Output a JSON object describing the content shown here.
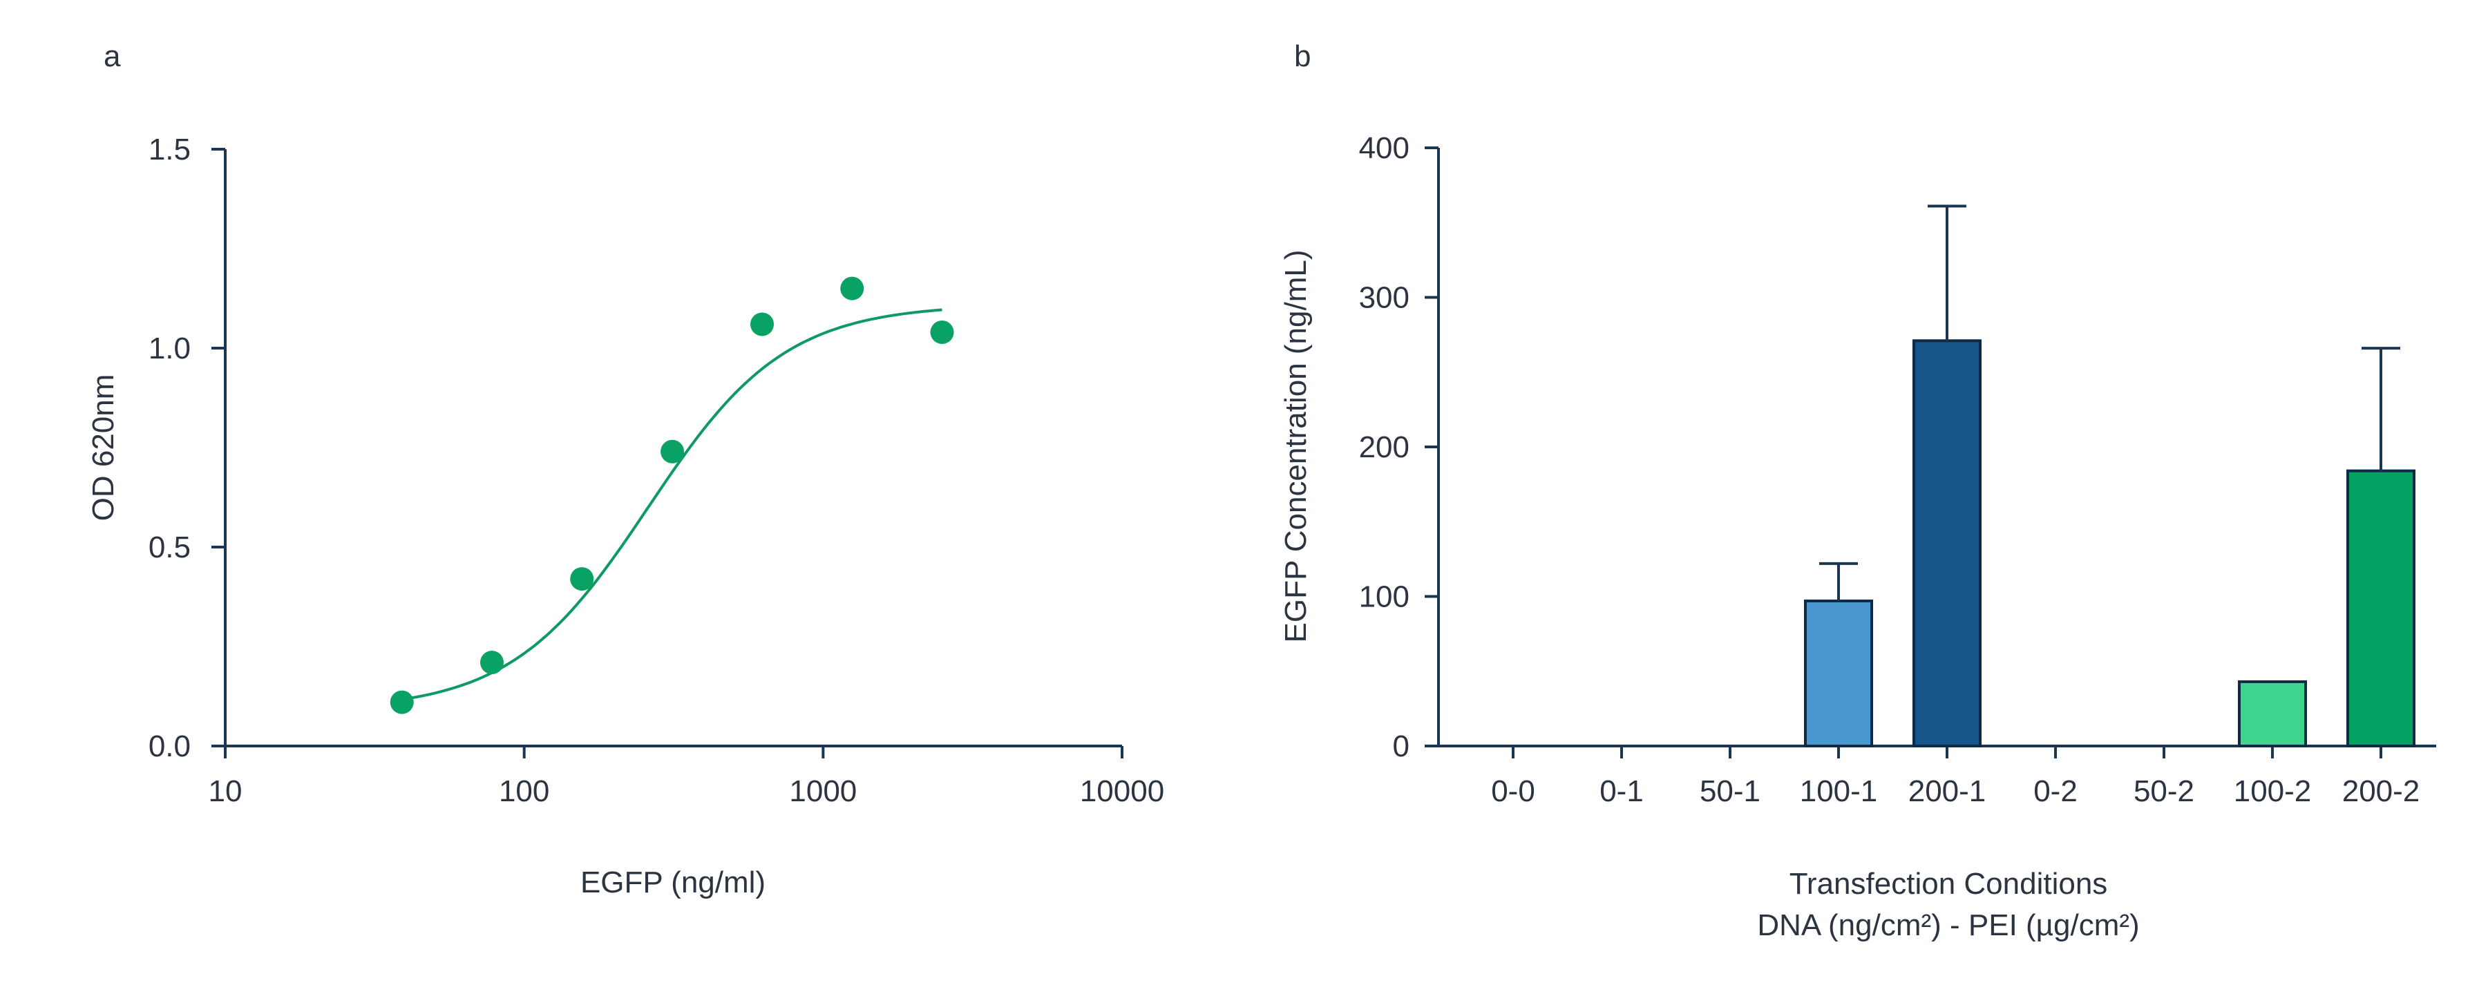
{
  "panels": {
    "a": "a",
    "b": "b"
  },
  "colors": {
    "axis": "#1c3550",
    "curve": "#0f9a63",
    "points": "#0aa264",
    "bars": {
      "100-1": "#4a98cf",
      "200-1": "#15568a",
      "100-2": "#3fd58f",
      "200-2": "#04a262"
    }
  },
  "chart_data": [
    {
      "type": "scatter",
      "panel": "a",
      "xlabel": "EGFP (ng/ml)",
      "ylabel": "OD 620nm",
      "xscale": "log",
      "xlim": [
        10,
        10000
      ],
      "ylim": [
        0,
        1.5
      ],
      "xticks": [
        10,
        100,
        1000,
        10000
      ],
      "xtick_labels": [
        "10",
        "100",
        "1000",
        "10000"
      ],
      "yticks": [
        0,
        0.5,
        1.0,
        1.5
      ],
      "ytick_labels": [
        "0.0",
        "0.5",
        "1.0",
        "1.5"
      ],
      "points": [
        {
          "x": 39,
          "y": 0.11
        },
        {
          "x": 78,
          "y": 0.21
        },
        {
          "x": 156,
          "y": 0.42
        },
        {
          "x": 313,
          "y": 0.74
        },
        {
          "x": 625,
          "y": 1.06
        },
        {
          "x": 1250,
          "y": 1.15
        },
        {
          "x": 2500,
          "y": 1.04
        }
      ],
      "fit_curve": {
        "kind": "4PL",
        "bottom": 0.09,
        "top": 1.11,
        "ec50": 260,
        "hill": 1.9,
        "x_range": [
          39,
          2500
        ]
      },
      "grid": false,
      "legend": "none"
    },
    {
      "type": "bar",
      "panel": "b",
      "xlabel": "Transfection Conditions",
      "xlabel2": "DNA (ng/cm²) - PEI (µg/cm²)",
      "ylabel": "EGFP Concentration (ng/mL)",
      "ylim": [
        0,
        400
      ],
      "yticks": [
        0,
        100,
        200,
        300,
        400
      ],
      "ytick_labels": [
        "0",
        "100",
        "200",
        "300",
        "400"
      ],
      "categories": [
        "0-0",
        "0-1",
        "50-1",
        "100-1",
        "200-1",
        "0-2",
        "50-2",
        "100-2",
        "200-2"
      ],
      "values": [
        0,
        0,
        0,
        97,
        271,
        0,
        0,
        43,
        184
      ],
      "error": [
        0,
        0,
        0,
        25,
        90,
        0,
        0,
        0,
        82
      ],
      "grid": false,
      "legend": "none"
    }
  ]
}
